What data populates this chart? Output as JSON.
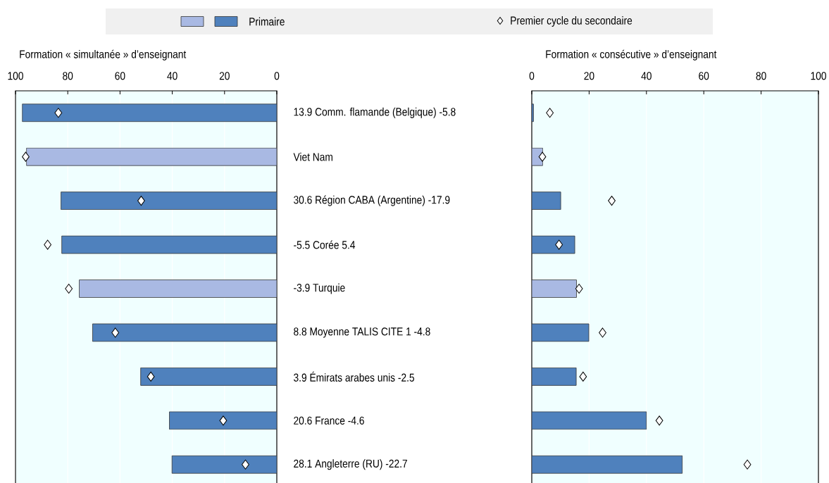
{
  "chart_data": [
    {
      "type": "bar",
      "orientation": "horizontal",
      "xlabel": "Formation « simultanée » d’enseignant",
      "categories": [
        "13.9 Comm. flamande (Belgique) -5.8",
        "Viet Nam",
        "30.6 Région CABA (Argentine) -17.9",
        "-5.5 Corée 5.4",
        "-3.9 Turquie",
        "8.8 Moyenne TALIS CITE 1 -4.8",
        "3.9 Émirats arabes unis -2.5",
        "20.6 France -4.6",
        "28.1 Angleterre (RU) -22.7"
      ],
      "xlim": [
        100,
        0
      ],
      "xticks": [
        100,
        80,
        60,
        40,
        20,
        0
      ],
      "grid": "x",
      "legend": "top",
      "series": [
        {
          "name": "Primaire",
          "colors": [
            "#4f81bd",
            "#a9b9e3",
            "#4f81bd",
            "#4f81bd",
            "#a9b9e3",
            "#4f81bd",
            "#4f81bd",
            "#4f81bd",
            "#4f81bd"
          ],
          "values": [
            97.4,
            95.8,
            82.6,
            82.3,
            75.6,
            70.5,
            52.1,
            41.1,
            40.1
          ]
        },
        {
          "name": "Premier cycle du secondaire",
          "type": "scatter",
          "marker": "diamond",
          "color": "#ffffff",
          "values": [
            83.6,
            96.1,
            51.9,
            87.7,
            79.6,
            61.8,
            48.2,
            20.5,
            12.0
          ]
        }
      ]
    },
    {
      "type": "bar",
      "orientation": "horizontal",
      "xlabel": "Formation « consécutive » d’enseignant",
      "categories": [
        null,
        null,
        null,
        null,
        null,
        null,
        null,
        null,
        null
      ],
      "xlim": [
        0,
        100
      ],
      "xticks": [
        0,
        20,
        40,
        60,
        80,
        100
      ],
      "grid": "x",
      "series": [
        {
          "colors": [
            "#4f81bd",
            "#a9b9e3",
            "#4f81bd",
            "#4f81bd",
            "#a9b9e3",
            "#4f81bd",
            "#4f81bd",
            "#4f81bd",
            "#4f81bd"
          ],
          "values": [
            0.6,
            3.8,
            10.1,
            15.0,
            15.6,
            19.9,
            15.5,
            40.0,
            52.5
          ]
        },
        {
          "type": "scatter",
          "marker": "diamond",
          "color": "#ffffff",
          "values": [
            6.3,
            3.7,
            27.9,
            9.5,
            16.5,
            24.7,
            17.9,
            44.5,
            75.2
          ]
        }
      ]
    }
  ]
}
